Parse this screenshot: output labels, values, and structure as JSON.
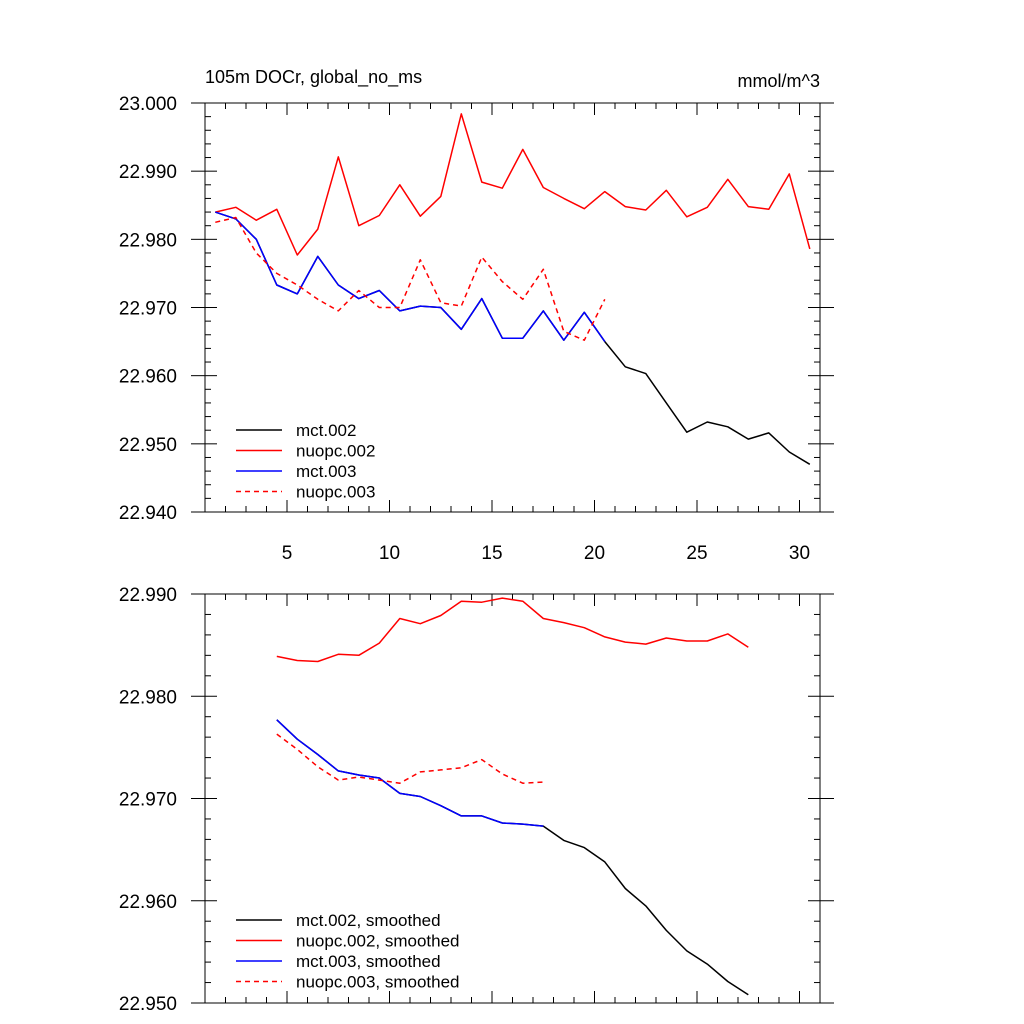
{
  "chart_data": [
    {
      "type": "line",
      "title": "105m DOCr, global_no_ms",
      "units": "mmol/m^3",
      "xlim": [
        1,
        31
      ],
      "ylim": [
        22.94,
        23.0
      ],
      "xticks": [
        5,
        10,
        15,
        20,
        25,
        30
      ],
      "xtick_labels": [
        "5",
        "10",
        "15",
        "20",
        "25",
        "30"
      ],
      "yticks": [
        22.94,
        22.95,
        22.96,
        22.97,
        22.98,
        22.99,
        23.0
      ],
      "ytick_labels": [
        "22.940",
        "22.950",
        "22.960",
        "22.970",
        "22.980",
        "22.990",
        "23.000"
      ],
      "legend_position": "bottom-left",
      "series": [
        {
          "name": "mct.002",
          "color": "#000000",
          "dash": "solid",
          "x": [
            1.5,
            2.5,
            3.5,
            4.5,
            5.5,
            6.5,
            7.5,
            8.5,
            9.5,
            10.5,
            11.5,
            12.5,
            13.5,
            14.5,
            15.5,
            16.5,
            17.5,
            18.5,
            19.5,
            20.5,
            21.5,
            22.5,
            23.5,
            24.5,
            25.5,
            26.5,
            27.5,
            28.5,
            29.5,
            30.5
          ],
          "values": [
            22.984,
            22.983,
            22.98,
            22.9733,
            22.972,
            22.9775,
            22.9733,
            22.9713,
            22.9725,
            22.9695,
            22.9702,
            22.97,
            22.9668,
            22.9713,
            22.9655,
            22.9655,
            22.9695,
            22.9652,
            22.9693,
            22.965,
            22.9613,
            22.9603,
            22.956,
            22.9517,
            22.9532,
            22.9525,
            22.9507,
            22.9516,
            22.9488,
            22.947
          ]
        },
        {
          "name": "nuopc.002",
          "color": "#ff0000",
          "dash": "solid",
          "x": [
            1.5,
            2.5,
            3.5,
            4.5,
            5.5,
            6.5,
            7.5,
            8.5,
            9.5,
            10.5,
            11.5,
            12.5,
            13.5,
            14.5,
            15.5,
            16.5,
            17.5,
            18.5,
            19.5,
            20.5,
            21.5,
            22.5,
            23.5,
            24.5,
            25.5,
            26.5,
            27.5,
            28.5,
            29.5,
            30.5
          ],
          "values": [
            22.984,
            22.9847,
            22.9828,
            22.9844,
            22.9777,
            22.9815,
            22.9921,
            22.982,
            22.9835,
            22.988,
            22.9834,
            22.9863,
            22.9984,
            22.9884,
            22.9875,
            22.9932,
            22.9876,
            22.986,
            22.9845,
            22.987,
            22.9848,
            22.9843,
            22.9872,
            22.9833,
            22.9847,
            22.9888,
            22.9848,
            22.9844,
            22.9896,
            22.9786
          ]
        },
        {
          "name": "mct.003",
          "color": "#0000ff",
          "dash": "solid",
          "x": [
            1.5,
            2.5,
            3.5,
            4.5,
            5.5,
            6.5,
            7.5,
            8.5,
            9.5,
            10.5,
            11.5,
            12.5,
            13.5,
            14.5,
            15.5,
            16.5,
            17.5,
            18.5,
            19.5,
            20.5
          ],
          "values": [
            22.984,
            22.983,
            22.98,
            22.9733,
            22.972,
            22.9775,
            22.9733,
            22.9713,
            22.9725,
            22.9695,
            22.9702,
            22.97,
            22.9668,
            22.9713,
            22.9655,
            22.9655,
            22.9695,
            22.9652,
            22.9693,
            22.965
          ]
        },
        {
          "name": "nuopc.003",
          "color": "#ff0000",
          "dash": "dashed",
          "x": [
            1.5,
            2.5,
            3.5,
            4.5,
            5.5,
            6.5,
            7.5,
            8.5,
            9.5,
            10.5,
            11.5,
            12.5,
            13.5,
            14.5,
            15.5,
            16.5,
            17.5,
            18.5,
            19.5,
            20.5
          ],
          "values": [
            22.9825,
            22.9832,
            22.978,
            22.975,
            22.9733,
            22.9712,
            22.9695,
            22.9725,
            22.97,
            22.97,
            22.977,
            22.9707,
            22.9702,
            22.9774,
            22.9738,
            22.9712,
            22.9756,
            22.9665,
            22.9652,
            22.9712
          ]
        }
      ]
    },
    {
      "type": "line",
      "xlim": [
        1,
        31
      ],
      "ylim": [
        22.95,
        22.99
      ],
      "xticks": [
        5,
        10,
        15,
        20,
        25,
        30
      ],
      "yticks": [
        22.95,
        22.96,
        22.97,
        22.98,
        22.99
      ],
      "ytick_labels": [
        "22.950",
        "22.960",
        "22.970",
        "22.980",
        "22.990"
      ],
      "legend_position": "bottom-left",
      "series": [
        {
          "name": "mct.002, smoothed",
          "color": "#000000",
          "dash": "solid",
          "x": [
            4.5,
            5.5,
            6.5,
            7.5,
            8.5,
            9.5,
            10.5,
            11.5,
            12.5,
            13.5,
            14.5,
            15.5,
            16.5,
            17.5,
            18.5,
            19.5,
            20.5,
            21.5,
            22.5,
            23.5,
            24.5,
            25.5,
            26.5,
            27.5
          ],
          "values": [
            22.9777,
            22.9758,
            22.9743,
            22.9727,
            22.9723,
            22.972,
            22.9705,
            22.9702,
            22.9693,
            22.9683,
            22.9683,
            22.9676,
            22.9675,
            22.9673,
            22.9659,
            22.9652,
            22.9638,
            22.9612,
            22.9595,
            22.9571,
            22.9551,
            22.9538,
            22.9521,
            22.9508
          ]
        },
        {
          "name": "nuopc.002, smoothed",
          "color": "#ff0000",
          "dash": "solid",
          "x": [
            4.5,
            5.5,
            6.5,
            7.5,
            8.5,
            9.5,
            10.5,
            11.5,
            12.5,
            13.5,
            14.5,
            15.5,
            16.5,
            17.5,
            18.5,
            19.5,
            20.5,
            21.5,
            22.5,
            23.5,
            24.5,
            25.5,
            26.5,
            27.5
          ],
          "values": [
            22.9839,
            22.9835,
            22.9834,
            22.9841,
            22.984,
            22.9852,
            22.9876,
            22.9871,
            22.9879,
            22.9893,
            22.9892,
            22.9896,
            22.9893,
            22.9876,
            22.9872,
            22.9867,
            22.9858,
            22.9853,
            22.9851,
            22.9857,
            22.9854,
            22.9854,
            22.9861,
            22.9848
          ]
        },
        {
          "name": "mct.003, smoothed",
          "color": "#0000ff",
          "dash": "solid",
          "x": [
            4.5,
            5.5,
            6.5,
            7.5,
            8.5,
            9.5,
            10.5,
            11.5,
            12.5,
            13.5,
            14.5,
            15.5,
            16.5,
            17.5
          ],
          "values": [
            22.9777,
            22.9758,
            22.9743,
            22.9727,
            22.9723,
            22.972,
            22.9705,
            22.9702,
            22.9693,
            22.9683,
            22.9683,
            22.9676,
            22.9675,
            22.9673
          ]
        },
        {
          "name": "nuopc.003, smoothed",
          "color": "#ff0000",
          "dash": "dashed",
          "x": [
            4.5,
            5.5,
            6.5,
            7.5,
            8.5,
            9.5,
            10.5,
            11.5,
            12.5,
            13.5,
            14.5,
            15.5,
            16.5,
            17.5
          ],
          "values": [
            22.9763,
            22.9748,
            22.9731,
            22.9718,
            22.9721,
            22.9718,
            22.9715,
            22.9726,
            22.9728,
            22.973,
            22.9738,
            22.9724,
            22.9715,
            22.9716
          ]
        }
      ]
    }
  ]
}
